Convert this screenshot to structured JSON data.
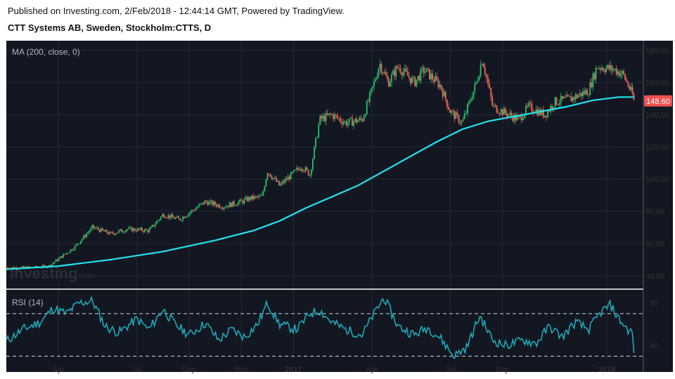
{
  "header": {
    "published": "Published on Investing.com, 2/Feb/2018 - 12:44:14 GMT, Powered by TradingView.",
    "instrument": "CTT Systems AB, Sweden, Stockholm:CTTS, D"
  },
  "watermark": {
    "brand": "Investing",
    "suffix": ".com"
  },
  "colors": {
    "background": "#131722",
    "up": "#26c26a",
    "down": "#f4665e",
    "ma": "#26e2ec",
    "rsi": "#1fa8b5",
    "last_price_bg": "#f05252"
  },
  "chart_data": [
    {
      "type": "candlestick",
      "indicator_label": "MA (200, close, 0)",
      "y_ticks": [
        40,
        60,
        80,
        100,
        120,
        140,
        160,
        180
      ],
      "y_tick_labels": [
        "40.00",
        "60.00",
        "80.00",
        "100.00",
        "120.00",
        "140.00",
        "160.00",
        "180.00"
      ],
      "ylim": [
        36,
        186
      ],
      "x_tick_labels": [
        "Apr",
        "Jul",
        "Sep",
        "Nov",
        "2017",
        "Apr",
        "Jul",
        "Sep",
        "2018"
      ],
      "last_price_label": "148.60",
      "close_path": [
        [
          "2016-02-01",
          45
        ],
        [
          "2016-03-01",
          45
        ],
        [
          "2016-03-20",
          46
        ],
        [
          "2016-04-20",
          58
        ],
        [
          "2016-05-10",
          70
        ],
        [
          "2016-06-01",
          66
        ],
        [
          "2016-06-20",
          69
        ],
        [
          "2016-07-15",
          68
        ],
        [
          "2016-08-01",
          78
        ],
        [
          "2016-08-20",
          75
        ],
        [
          "2016-09-20",
          86
        ],
        [
          "2016-10-10",
          83
        ],
        [
          "2016-11-01",
          86
        ],
        [
          "2016-11-10",
          88
        ],
        [
          "2016-11-25",
          89
        ],
        [
          "2016-12-01",
          105
        ],
        [
          "2016-12-15",
          96
        ],
        [
          "2017-01-10",
          108
        ],
        [
          "2017-01-20",
          103
        ],
        [
          "2017-02-01",
          137
        ],
        [
          "2017-02-15",
          140
        ],
        [
          "2017-03-01",
          135
        ],
        [
          "2017-03-20",
          137
        ],
        [
          "2017-04-01",
          155
        ],
        [
          "2017-04-10",
          172
        ],
        [
          "2017-04-20",
          160
        ],
        [
          "2017-05-01",
          170
        ],
        [
          "2017-05-20",
          160
        ],
        [
          "2017-06-01",
          168
        ],
        [
          "2017-06-20",
          158
        ],
        [
          "2017-07-01",
          142
        ],
        [
          "2017-07-15",
          135
        ],
        [
          "2017-08-01",
          160
        ],
        [
          "2017-08-08",
          175
        ],
        [
          "2017-08-20",
          145
        ],
        [
          "2017-09-01",
          142
        ],
        [
          "2017-09-20",
          137
        ],
        [
          "2017-10-01",
          145
        ],
        [
          "2017-10-20",
          140
        ],
        [
          "2017-11-01",
          148
        ],
        [
          "2017-11-20",
          150
        ],
        [
          "2017-12-10",
          155
        ],
        [
          "2017-12-20",
          170
        ],
        [
          "2018-01-10",
          168
        ],
        [
          "2018-01-20",
          165
        ],
        [
          "2018-01-31",
          152
        ],
        [
          "2018-02-02",
          148.6
        ]
      ],
      "ma_series": {
        "name": "MA (200, close, 0)",
        "points": [
          [
            "2016-02-01",
            44
          ],
          [
            "2016-04-01",
            46
          ],
          [
            "2016-06-01",
            50
          ],
          [
            "2016-08-01",
            55
          ],
          [
            "2016-10-01",
            62
          ],
          [
            "2016-11-15",
            68
          ],
          [
            "2016-12-15",
            74
          ],
          [
            "2017-01-15",
            82
          ],
          [
            "2017-02-15",
            89
          ],
          [
            "2017-03-15",
            96
          ],
          [
            "2017-04-15",
            105
          ],
          [
            "2017-05-15",
            114
          ],
          [
            "2017-06-15",
            123
          ],
          [
            "2017-07-15",
            131
          ],
          [
            "2017-08-15",
            136
          ],
          [
            "2017-09-15",
            139
          ],
          [
            "2017-10-15",
            142
          ],
          [
            "2017-11-15",
            145
          ],
          [
            "2017-12-15",
            149
          ],
          [
            "2018-01-15",
            151
          ],
          [
            "2018-02-02",
            151
          ]
        ]
      }
    },
    {
      "type": "line",
      "indicator_label": "RSI (14)",
      "y_ticks": [
        40,
        80
      ],
      "y_tick_labels": [
        "40",
        "80"
      ],
      "ylim": [
        27,
        93
      ],
      "reference_lines": [
        30,
        70
      ],
      "x_tick_labels": [
        "Apr",
        "Jul",
        "Sep",
        "Nov",
        "2017",
        "Apr",
        "Jul",
        "Sep",
        "2018"
      ],
      "series": [
        {
          "points": [
            [
              "2016-02-01",
              44
            ],
            [
              "2016-02-20",
              55
            ],
            [
              "2016-03-10",
              62
            ],
            [
              "2016-03-25",
              75
            ],
            [
              "2016-04-10",
              70
            ],
            [
              "2016-04-25",
              80
            ],
            [
              "2016-05-10",
              82
            ],
            [
              "2016-05-25",
              58
            ],
            [
              "2016-06-10",
              52
            ],
            [
              "2016-07-01",
              65
            ],
            [
              "2016-07-15",
              55
            ],
            [
              "2016-08-01",
              74
            ],
            [
              "2016-08-15",
              60
            ],
            [
              "2016-09-01",
              50
            ],
            [
              "2016-09-20",
              61
            ],
            [
              "2016-10-05",
              45
            ],
            [
              "2016-10-20",
              55
            ],
            [
              "2016-11-05",
              48
            ],
            [
              "2016-11-20",
              60
            ],
            [
              "2016-12-01",
              80
            ],
            [
              "2016-12-15",
              60
            ],
            [
              "2017-01-05",
              55
            ],
            [
              "2017-01-20",
              70
            ],
            [
              "2017-02-01",
              73
            ],
            [
              "2017-02-15",
              62
            ],
            [
              "2017-03-01",
              55
            ],
            [
              "2017-03-20",
              50
            ],
            [
              "2017-04-05",
              72
            ],
            [
              "2017-04-15",
              85
            ],
            [
              "2017-05-01",
              58
            ],
            [
              "2017-05-20",
              50
            ],
            [
              "2017-06-05",
              57
            ],
            [
              "2017-06-20",
              47
            ],
            [
              "2017-07-05",
              30
            ],
            [
              "2017-07-20",
              38
            ],
            [
              "2017-08-05",
              68
            ],
            [
              "2017-08-20",
              45
            ],
            [
              "2017-09-05",
              40
            ],
            [
              "2017-09-25",
              45
            ],
            [
              "2017-10-10",
              42
            ],
            [
              "2017-10-25",
              58
            ],
            [
              "2017-11-10",
              48
            ],
            [
              "2017-11-25",
              62
            ],
            [
              "2017-12-10",
              55
            ],
            [
              "2017-12-25",
              72
            ],
            [
              "2018-01-05",
              78
            ],
            [
              "2018-01-15",
              65
            ],
            [
              "2018-01-25",
              55
            ],
            [
              "2018-01-31",
              52
            ],
            [
              "2018-02-02",
              33
            ]
          ]
        }
      ]
    }
  ]
}
